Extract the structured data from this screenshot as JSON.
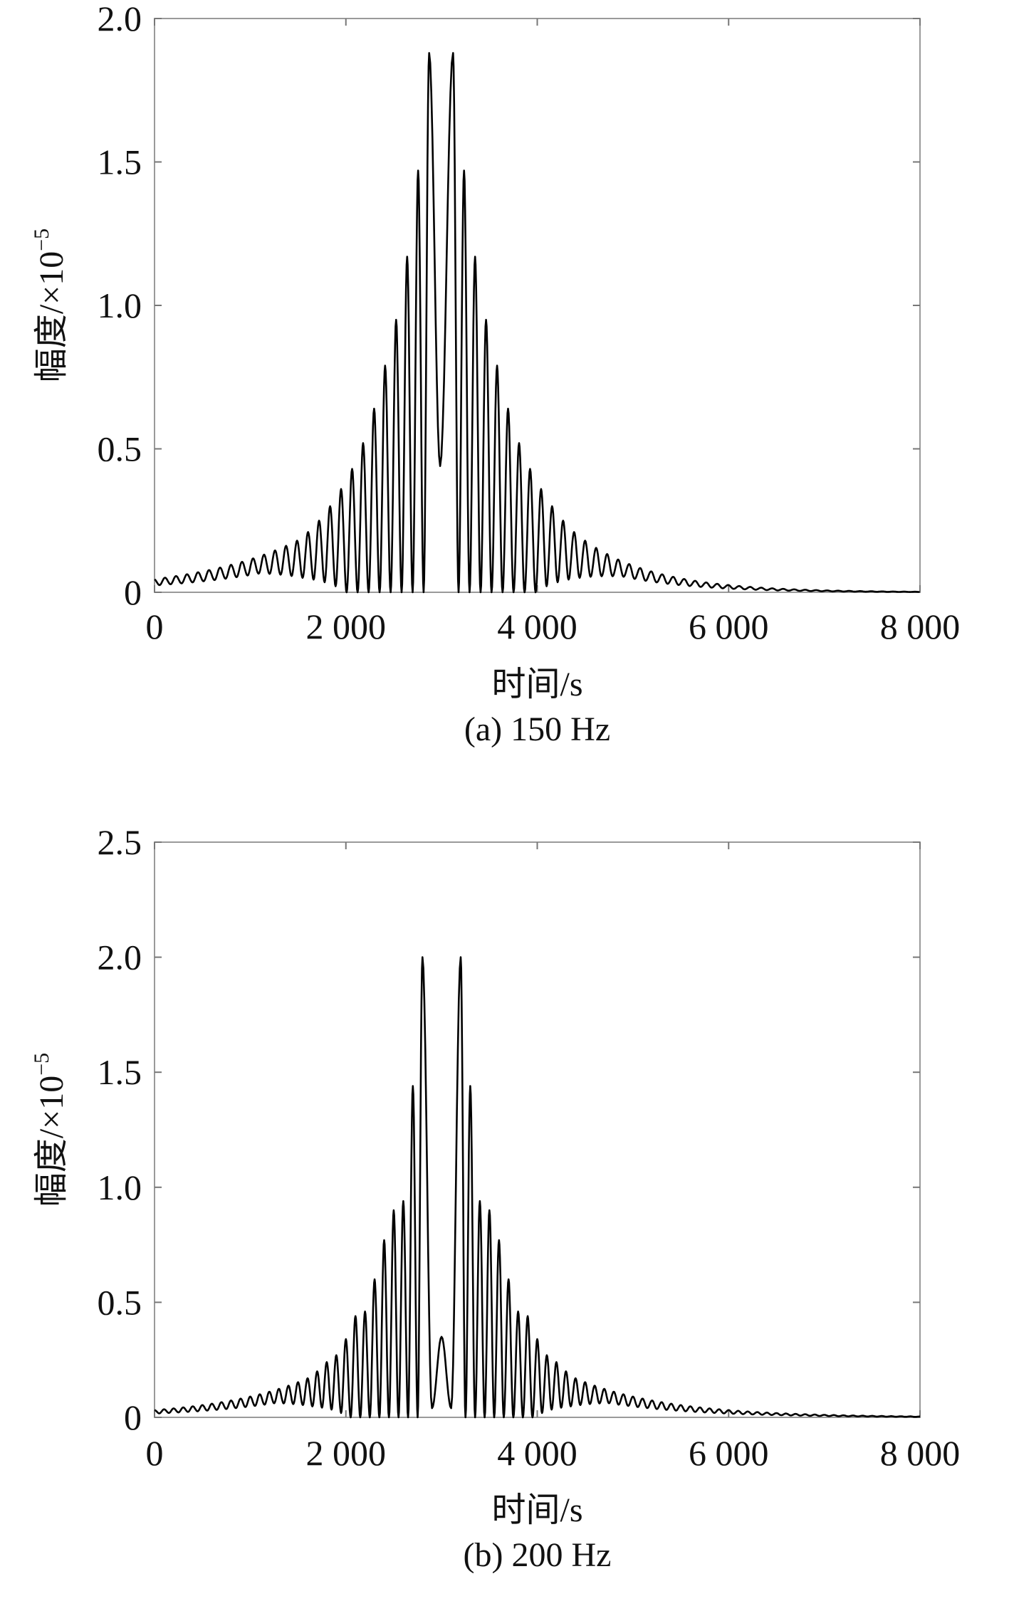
{
  "chart_data": [
    {
      "type": "line",
      "caption": "(a) 150 Hz",
      "xlabel": "时间/s",
      "ylabel": "幅度/×10",
      "ylabel_exp": "−5",
      "xlim": [
        0,
        8000
      ],
      "ylim": [
        0,
        2.0
      ],
      "xticks": [
        0,
        2000,
        4000,
        6000,
        8000
      ],
      "xtick_labels": [
        "0",
        "2 000",
        "4 000",
        "6 000",
        "8 000"
      ],
      "yticks": [
        0,
        0.5,
        1.0,
        1.5,
        2.0
      ],
      "ytick_labels": [
        "0",
        "0.5",
        "1.0",
        "1.5",
        "2.0"
      ],
      "grid": false,
      "series": [
        {
          "name": "amplitude",
          "color": "#000000",
          "center_extrema": [
            [
              2870,
              1.88
            ],
            [
              2985,
              0.44
            ],
            [
              3120,
              1.88
            ]
          ],
          "peak_spacing": 115,
          "peak_heights_outward": [
            1.47,
            1.17,
            0.95,
            0.79,
            0.64,
            0.52,
            0.43,
            0.36,
            0.3,
            0.25,
            0.21,
            0.18
          ],
          "tail_decay_left": 0.9,
          "tail_decay_right": 0.86
        }
      ]
    },
    {
      "type": "line",
      "caption": "(b) 200 Hz",
      "xlabel": "时间/s",
      "ylabel": "幅度/×10",
      "ylabel_exp": "−5",
      "xlim": [
        0,
        8000
      ],
      "ylim": [
        0,
        2.5
      ],
      "xticks": [
        0,
        2000,
        4000,
        6000,
        8000
      ],
      "xtick_labels": [
        "0",
        "2 000",
        "4 000",
        "6 000",
        "8 000"
      ],
      "yticks": [
        0,
        0.5,
        1.0,
        1.5,
        2.0,
        2.5
      ],
      "ytick_labels": [
        "0",
        "0.5",
        "1.0",
        "1.5",
        "2.0",
        "2.5"
      ],
      "grid": false,
      "series": [
        {
          "name": "amplitude",
          "color": "#000000",
          "center_extrema": [
            [
              2800,
              2.0
            ],
            [
              2900,
              0.04
            ],
            [
              3000,
              0.35
            ],
            [
              3100,
              0.04
            ],
            [
              3200,
              2.0
            ]
          ],
          "peak_spacing": 100,
          "peak_heights_outward": [
            1.44,
            0.94,
            0.9,
            0.77,
            0.6,
            0.46,
            0.44,
            0.34,
            0.27,
            0.24,
            0.2,
            0.17
          ],
          "tail_decay_left": 0.9,
          "tail_decay_right": 0.9
        }
      ]
    }
  ]
}
